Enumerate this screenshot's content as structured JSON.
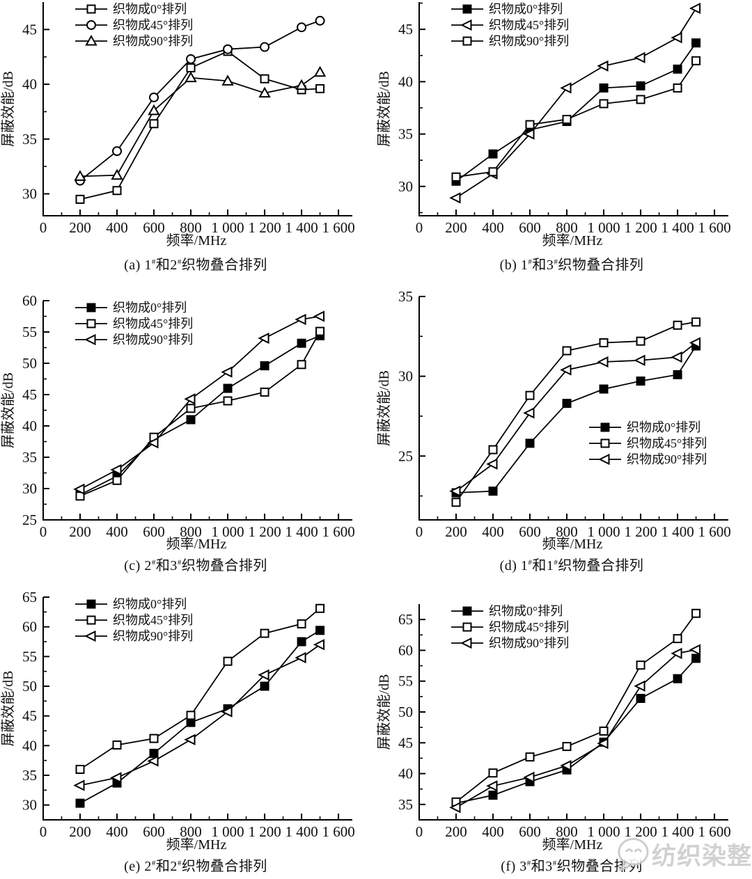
{
  "watermark": {
    "text": "纺织染整",
    "icon": "wechat-chat-bubble-face-icon",
    "color": "#c9c9c9"
  },
  "chart_data": [
    {
      "panel": "a",
      "type": "line",
      "title": "(a) 1#和2#织物叠合排列",
      "xlabel": "频率/MHz",
      "ylabel": "屏蔽效能/dB",
      "x": [
        200,
        400,
        600,
        800,
        1000,
        1200,
        1400,
        1500
      ],
      "xticks": [
        0,
        200,
        400,
        600,
        800,
        1000,
        1200,
        1400,
        1600
      ],
      "xtick_labels": [
        "0",
        "200",
        "400",
        "600",
        "800",
        "1 000",
        "1 200",
        "1 400",
        "1 600"
      ],
      "xlim": [
        0,
        1660
      ],
      "ylim": [
        28,
        47.5
      ],
      "yticks": [
        30,
        35,
        40,
        45
      ],
      "minor_x": 100,
      "minor_y": 2.5,
      "grid": false,
      "legend_position": "top-left",
      "series": [
        {
          "name": "织物成0°排列",
          "marker": "square-open",
          "values": [
            29.5,
            30.3,
            36.4,
            41.5,
            43.0,
            40.5,
            39.5,
            39.6
          ]
        },
        {
          "name": "织物成45°排列",
          "marker": "circle-open",
          "values": [
            31.2,
            33.9,
            38.8,
            42.3,
            43.2,
            43.4,
            45.2,
            45.8
          ]
        },
        {
          "name": "织物成90°排列",
          "marker": "triangle-up-open",
          "values": [
            31.6,
            31.7,
            37.6,
            40.6,
            40.3,
            39.2,
            39.9,
            41.1
          ]
        }
      ]
    },
    {
      "panel": "b",
      "type": "line",
      "title": "(b) 1#和3#织物叠合排列",
      "xlabel": "频率/MHz",
      "ylabel": "屏蔽效能/dB",
      "x": [
        200,
        400,
        600,
        800,
        1000,
        1200,
        1400,
        1500
      ],
      "xticks": [
        0,
        200,
        400,
        600,
        800,
        1000,
        1200,
        1400,
        1600
      ],
      "xtick_labels": [
        "0",
        "200",
        "400",
        "600",
        "800",
        "1 000",
        "1 200",
        "1 400",
        "1 600"
      ],
      "xlim": [
        0,
        1660
      ],
      "ylim": [
        27.2,
        47.6
      ],
      "yticks": [
        30,
        35,
        40,
        45
      ],
      "minor_x": 100,
      "minor_y": 2.5,
      "grid": false,
      "legend_position": "top-left",
      "series": [
        {
          "name": "织物成0°排列",
          "marker": "square-filled",
          "values": [
            30.5,
            33.1,
            35.4,
            36.2,
            39.4,
            39.6,
            41.2,
            43.7
          ]
        },
        {
          "name": "织物成45°排列",
          "marker": "triangle-left-open",
          "values": [
            28.9,
            31.2,
            35.0,
            39.4,
            41.5,
            42.3,
            44.2,
            47.0
          ]
        },
        {
          "name": "织物成90°排列",
          "marker": "square-open",
          "values": [
            30.9,
            31.4,
            35.9,
            36.4,
            37.9,
            38.3,
            39.4,
            42.0
          ]
        }
      ]
    },
    {
      "panel": "c",
      "type": "line",
      "title": "(c) 2#和3#织物叠合排列",
      "xlabel": "频率/MHz",
      "ylabel": "屏蔽效能/dB",
      "x": [
        200,
        400,
        600,
        800,
        1000,
        1200,
        1400,
        1500
      ],
      "xticks": [
        0,
        200,
        400,
        600,
        800,
        1000,
        1200,
        1400,
        1600
      ],
      "xtick_labels": [
        "0",
        "200",
        "400",
        "600",
        "800",
        "1 000",
        "1 200",
        "1 400",
        "1 600"
      ],
      "xlim": [
        0,
        1660
      ],
      "ylim": [
        25,
        60
      ],
      "yticks": [
        25,
        30,
        35,
        40,
        45,
        50,
        55,
        60
      ],
      "minor_x": 100,
      "minor_y": 2.5,
      "grid": false,
      "legend_position": "top-left",
      "series": [
        {
          "name": "织物成0°排列",
          "marker": "square-filled",
          "values": [
            29.0,
            32.0,
            37.8,
            41.0,
            46.0,
            49.6,
            53.2,
            54.4
          ]
        },
        {
          "name": "织物成45°排列",
          "marker": "square-open",
          "values": [
            28.8,
            31.3,
            38.2,
            42.8,
            44.0,
            45.4,
            49.8,
            55.1
          ]
        },
        {
          "name": "织物成90°排列",
          "marker": "triangle-left-open",
          "values": [
            29.9,
            33.0,
            37.3,
            44.3,
            48.6,
            54.0,
            57.0,
            57.5
          ]
        }
      ]
    },
    {
      "panel": "d",
      "type": "line",
      "title": "(d) 1#和1#织物叠合排列",
      "xlabel": "频率/MHz",
      "ylabel": "屏蔽效能/dB",
      "x": [
        200,
        400,
        600,
        800,
        1000,
        1200,
        1400,
        1500
      ],
      "xticks": [
        0,
        200,
        400,
        600,
        800,
        1000,
        1200,
        1400,
        1600
      ],
      "xtick_labels": [
        "0",
        "200",
        "400",
        "600",
        "800",
        "1 000",
        "1 200",
        "1 400",
        "1 600"
      ],
      "xlim": [
        0,
        1660
      ],
      "ylim": [
        21,
        35
      ],
      "yticks": [
        25,
        30,
        35
      ],
      "minor_x": 100,
      "minor_y": 2.5,
      "grid": false,
      "legend_position": "middle-right",
      "series": [
        {
          "name": "织物成0°排列",
          "marker": "square-filled",
          "values": [
            22.7,
            22.8,
            25.8,
            28.3,
            29.2,
            29.7,
            30.1,
            31.9
          ]
        },
        {
          "name": "织物成45°排列",
          "marker": "square-open",
          "values": [
            22.1,
            25.4,
            28.8,
            31.6,
            32.1,
            32.2,
            33.2,
            33.4
          ]
        },
        {
          "name": "织物成90°排列",
          "marker": "triangle-left-open",
          "values": [
            22.8,
            24.5,
            27.7,
            30.4,
            30.9,
            31.0,
            31.2,
            32.1
          ]
        }
      ]
    },
    {
      "panel": "e",
      "type": "line",
      "title": "(e) 2#和2#织物叠合排列",
      "xlabel": "频率/MHz",
      "ylabel": "屏蔽效能/dB",
      "x": [
        200,
        400,
        600,
        800,
        1000,
        1200,
        1400,
        1500
      ],
      "xticks": [
        0,
        200,
        400,
        600,
        800,
        1000,
        1200,
        1400,
        1600
      ],
      "xtick_labels": [
        "0",
        "200",
        "400",
        "600",
        "800",
        "1 000",
        "1 200",
        "1 400",
        "1 600"
      ],
      "xlim": [
        0,
        1660
      ],
      "ylim": [
        27.5,
        65
      ],
      "yticks": [
        30,
        35,
        40,
        45,
        50,
        55,
        60,
        65
      ],
      "minor_x": 100,
      "minor_y": 2.5,
      "grid": false,
      "legend_position": "top-left",
      "series": [
        {
          "name": "织物成0°排列",
          "marker": "square-filled",
          "values": [
            30.3,
            33.7,
            38.7,
            43.9,
            46.2,
            50.0,
            57.5,
            59.4
          ]
        },
        {
          "name": "织物成45°排列",
          "marker": "square-open",
          "values": [
            36.0,
            40.1,
            41.2,
            45.1,
            54.2,
            58.9,
            60.5,
            63.1
          ]
        },
        {
          "name": "织物成90°排列",
          "marker": "triangle-left-open",
          "values": [
            33.3,
            34.6,
            37.4,
            41.0,
            45.7,
            51.9,
            54.8,
            57.0
          ]
        }
      ]
    },
    {
      "panel": "f",
      "type": "line",
      "title": "(f) 3#和3#织物叠合排列",
      "xlabel": "频率/MHz",
      "ylabel": "屏蔽效能/dB",
      "x": [
        200,
        400,
        600,
        800,
        1000,
        1200,
        1400,
        1500
      ],
      "xticks": [
        0,
        200,
        400,
        600,
        800,
        1000,
        1200,
        1400,
        1600
      ],
      "xtick_labels": [
        "0",
        "200",
        "400",
        "600",
        "800",
        "1 000",
        "1 200",
        "1 400",
        "1 600"
      ],
      "xlim": [
        0,
        1660
      ],
      "ylim": [
        32.5,
        67.5
      ],
      "yticks": [
        35,
        40,
        45,
        50,
        55,
        60,
        65
      ],
      "minor_x": 100,
      "minor_y": 2.5,
      "grid": false,
      "legend_position": "top-left",
      "series": [
        {
          "name": "织物成0°排列",
          "marker": "square-filled",
          "values": [
            35.2,
            36.5,
            38.7,
            40.6,
            45.1,
            52.2,
            55.4,
            58.7
          ]
        },
        {
          "name": "织物成45°排列",
          "marker": "square-open",
          "values": [
            35.4,
            40.1,
            42.7,
            44.4,
            46.9,
            57.6,
            61.9,
            66.0
          ]
        },
        {
          "name": "织物成90°排列",
          "marker": "triangle-left-open",
          "values": [
            34.5,
            38.0,
            39.4,
            41.3,
            44.9,
            54.2,
            59.5,
            60.1
          ]
        }
      ]
    }
  ]
}
